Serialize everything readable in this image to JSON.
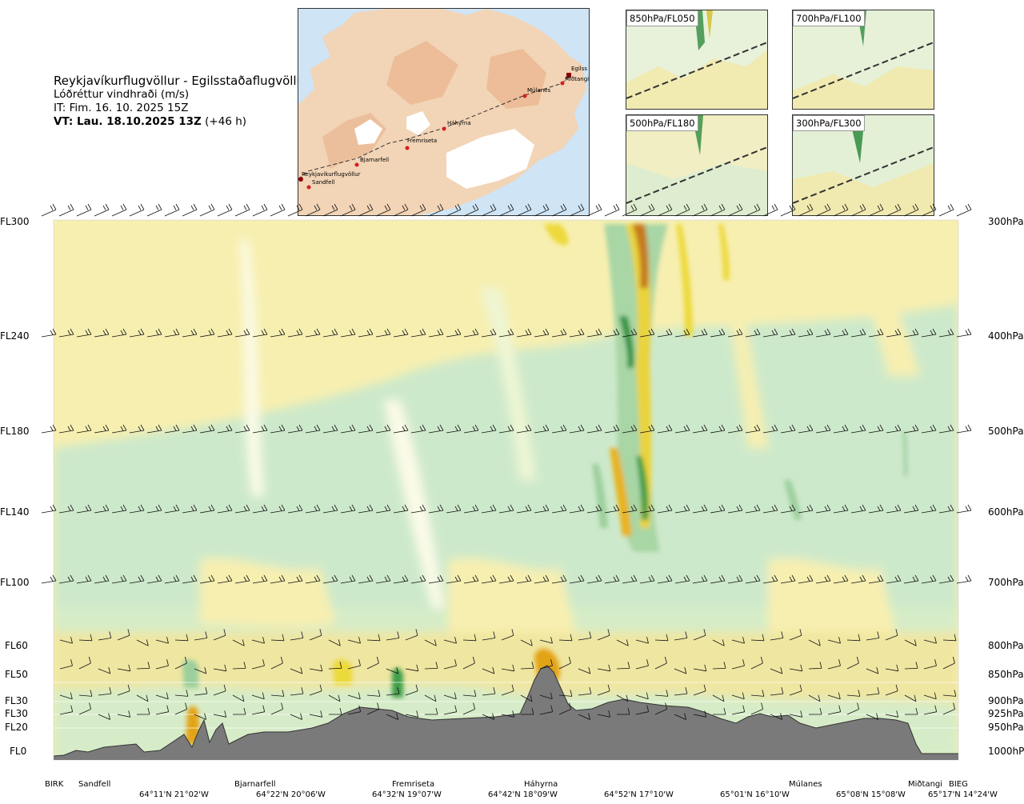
{
  "title": {
    "route": "Reykjavíkurflugvöllur - Egilsstaðaflugvöllur",
    "variable": "Lóðréttur vindhraði (m/s)",
    "issue_time": "IT: Fim. 16. 10. 2025 15Z",
    "valid_label": "VT: Lau. 18.10.2025 13Z",
    "valid_offset": "(+46 h)"
  },
  "map": {
    "stations": [
      {
        "name": "Reykjavíkurflugvöllur"
      },
      {
        "name": "Sandfell"
      },
      {
        "name": "Bjarnarfell"
      },
      {
        "name": "Fremriseta"
      },
      {
        "name": "Háhyrna"
      },
      {
        "name": "Múlanes"
      },
      {
        "name": "Miðtangi"
      },
      {
        "name": "Egilss"
      }
    ]
  },
  "insets": [
    {
      "label": "850hPa/FL050"
    },
    {
      "label": "700hPa/FL100"
    },
    {
      "label": "500hPa/FL180"
    },
    {
      "label": "300hPa/FL300"
    }
  ],
  "chart_data": {
    "type": "heatmap",
    "levels": [
      {
        "fl": "FL300",
        "hpa": "300hPa"
      },
      {
        "fl": "FL240",
        "hpa": "400hPa"
      },
      {
        "fl": "FL180",
        "hpa": "500hPa"
      },
      {
        "fl": "FL140",
        "hpa": "600hPa"
      },
      {
        "fl": "FL100",
        "hpa": "700hPa"
      },
      {
        "fl": "FL60",
        "hpa": "800hPa"
      },
      {
        "fl": "FL50",
        "hpa": "850hPa"
      },
      {
        "fl": "FL30",
        "hpa": "900hPa"
      },
      {
        "fl": "FL30",
        "hpa": "925hPa"
      },
      {
        "fl": "FL20",
        "hpa": "950hPa"
      },
      {
        "fl": "FL0",
        "hpa": "1000hPa"
      }
    ],
    "x_station_labels": [
      "BIRK",
      "Sandfell",
      "Bjarnarfell",
      "Fremriseta",
      "Háhyrna",
      "Múlanes",
      "Miðtangi",
      "BIEG"
    ],
    "x_coord_labels": [
      "64°11'N 21°02'W",
      "64°22'N 20°06'W",
      "64°32'N 19°07'W",
      "64°42'N 18°09'W",
      "64°52'N 17°10'W",
      "65°01'N 16°10'W",
      "65°08'N 15°08'W",
      "65°17'N 14°24'W"
    ],
    "colors": {
      "updraft_weak": "#f6f0a8",
      "updraft_moderate": "#ecd93a",
      "updraft_strong": "#e3a319",
      "updraft_extreme": "#c57a1c",
      "downdraft_weak": "#cbe9c9",
      "downdraft_moderate": "#9ccf9c",
      "downdraft_strong": "#3f9e48",
      "near_zero": "#fbfbe8",
      "terrain": "#7a7a7a"
    }
  }
}
